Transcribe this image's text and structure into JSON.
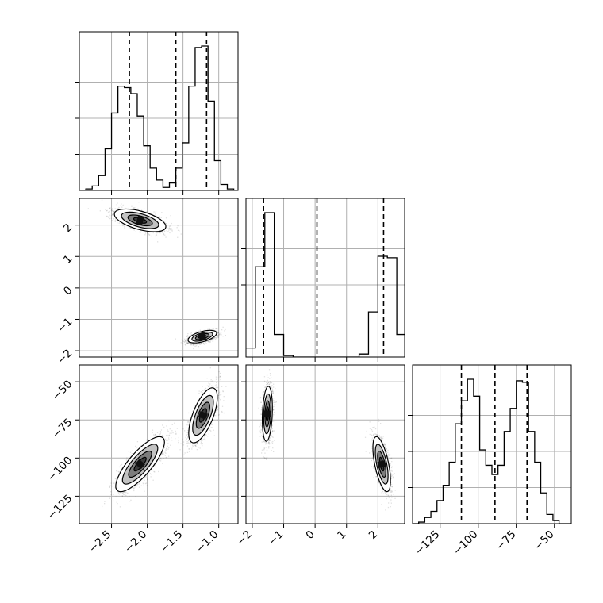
{
  "chart_data": {
    "type": "corner",
    "grid": true,
    "parameters": [
      {
        "key": "p1",
        "range": [
          -2.95,
          -0.73
        ],
        "ticks": [
          -2.5,
          -2.0,
          -1.5,
          -1.0
        ],
        "tick_labels": [
          "−2.5",
          "−2.0",
          "−1.5",
          "−1.0"
        ],
        "quantiles": [
          -2.25,
          -1.6,
          -1.17
        ],
        "histogram": {
          "edges": [
            -2.95,
            -2.86,
            -2.77,
            -2.68,
            -2.59,
            -2.5,
            -2.41,
            -2.32,
            -2.23,
            -2.14,
            -2.05,
            -1.96,
            -1.87,
            -1.78,
            -1.69,
            -1.6,
            -1.51,
            -1.42,
            -1.33,
            -1.24,
            -1.15,
            -1.06,
            -0.97,
            -0.88,
            -0.79,
            -0.73
          ],
          "counts": [
            0.0,
            0.01,
            0.03,
            0.1,
            0.28,
            0.52,
            0.7,
            0.69,
            0.65,
            0.5,
            0.3,
            0.15,
            0.07,
            0.02,
            0.05,
            0.15,
            0.32,
            0.7,
            0.96,
            0.97,
            0.6,
            0.2,
            0.04,
            0.01,
            0.0
          ]
        }
      },
      {
        "key": "p2",
        "range": [
          -2.2,
          2.85
        ],
        "ticks": [
          -2,
          -1,
          0,
          1,
          2
        ],
        "tick_labels": [
          "−2",
          "−1",
          "0",
          "1",
          "2"
        ],
        "quantiles": [
          -1.64,
          0.06,
          2.18
        ],
        "histogram": {
          "edges": [
            -2.2,
            -1.9,
            -1.6,
            -1.3,
            -1.0,
            -0.7,
            -0.4,
            -0.1,
            0.2,
            0.5,
            0.8,
            1.1,
            1.4,
            1.7,
            2.0,
            2.3,
            2.6,
            2.85
          ],
          "counts": [
            0.06,
            0.6,
            0.96,
            0.15,
            0.01,
            0.0,
            0.0,
            0.0,
            0.0,
            0.0,
            0.0,
            0.0,
            0.02,
            0.3,
            0.67,
            0.66,
            0.15
          ]
        }
      },
      {
        "key": "p3",
        "range": [
          -143,
          -39
        ],
        "ticks": [
          -125,
          -100,
          -75,
          -50
        ],
        "tick_labels": [
          "−125",
          "−100",
          "−75",
          "−50"
        ],
        "quantiles": [
          -111,
          -89,
          -68
        ],
        "histogram": {
          "edges": [
            -143,
            -139,
            -135,
            -131,
            -127,
            -123,
            -119,
            -115,
            -111,
            -107,
            -103,
            -99,
            -95,
            -91,
            -87,
            -83,
            -79,
            -75,
            -71,
            -67,
            -63,
            -59,
            -55,
            -51,
            -47,
            -43,
            -39
          ],
          "counts": [
            0.0,
            0.01,
            0.04,
            0.08,
            0.15,
            0.25,
            0.4,
            0.65,
            0.8,
            0.94,
            0.83,
            0.48,
            0.38,
            0.32,
            0.38,
            0.6,
            0.75,
            0.93,
            0.92,
            0.6,
            0.4,
            0.2,
            0.06,
            0.02,
            0.0,
            0.0
          ]
        }
      }
    ],
    "pairs": [
      {
        "x": "p1",
        "y": "p2",
        "modes": [
          {
            "center": [
              -2.1,
              2.15
            ],
            "sd": [
              0.18,
              0.18
            ],
            "corr": -0.55,
            "n": 1500
          },
          {
            "center": [
              -1.23,
              -1.55
            ],
            "sd": [
              0.1,
              0.1
            ],
            "corr": 0.55,
            "n": 1500
          }
        ]
      },
      {
        "x": "p1",
        "y": "p3",
        "modes": [
          {
            "center": [
              -2.1,
              -104
            ],
            "sd": [
              0.17,
              9
            ],
            "corr": 0.8,
            "n": 1500
          },
          {
            "center": [
              -1.22,
              -72
            ],
            "sd": [
              0.1,
              9
            ],
            "corr": 0.65,
            "n": 1500
          }
        ]
      },
      {
        "x": "p2",
        "y": "p3",
        "modes": [
          {
            "center": [
              -1.52,
              -71
            ],
            "sd": [
              0.08,
              9
            ],
            "corr": 0.2,
            "n": 1500
          },
          {
            "center": [
              2.12,
              -104
            ],
            "sd": [
              0.14,
              9
            ],
            "corr": -0.6,
            "n": 1500
          }
        ]
      }
    ],
    "contour_levels": [
      {
        "r": 2.0,
        "fill": "#ffffff"
      },
      {
        "r": 1.45,
        "fill": "#c2c2c2"
      },
      {
        "r": 0.95,
        "fill": "#7c7c7c"
      },
      {
        "r": 0.5,
        "fill": "#3a3a3a"
      }
    ]
  }
}
